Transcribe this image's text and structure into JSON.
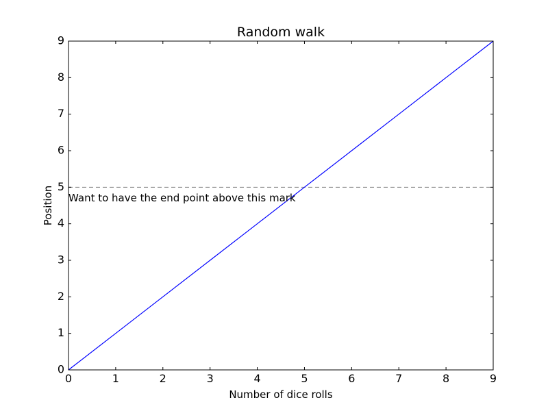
{
  "chart_data": {
    "type": "line",
    "title": "Random walk",
    "xlabel": "Number of dice rolls",
    "ylabel": "Position",
    "xlim": [
      0,
      9
    ],
    "ylim": [
      0,
      9
    ],
    "xticks": [
      0,
      1,
      2,
      3,
      4,
      5,
      6,
      7,
      8,
      9
    ],
    "yticks": [
      0,
      1,
      2,
      3,
      4,
      5,
      6,
      7,
      8,
      9
    ],
    "grid": false,
    "series": [
      {
        "x": [
          0,
          1,
          2,
          3,
          4,
          5,
          6,
          7,
          8,
          9
        ],
        "y": [
          0,
          1,
          2,
          3,
          4,
          5,
          6,
          7,
          8,
          9
        ],
        "color": "#0000ff"
      }
    ],
    "reference_line": {
      "y": 5,
      "style": "dashed",
      "color": "#808080"
    },
    "annotation": {
      "text": "Want to have the end point above this mark",
      "x": 0,
      "y": 4.7
    }
  }
}
